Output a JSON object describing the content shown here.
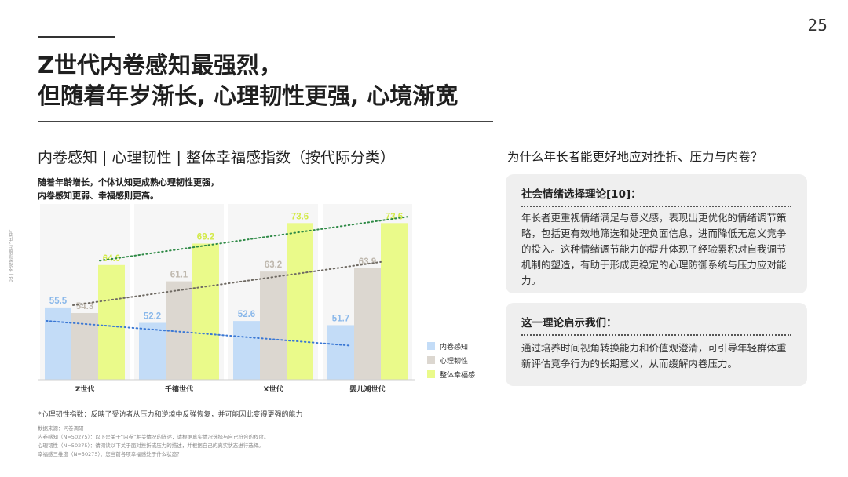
{
  "page_number": "25",
  "title": {
    "line1": "Z世代内卷感知最强烈，",
    "line2": "但随着年岁渐长, 心理韧性更强, 心境渐宽"
  },
  "side_label": "03 | 幸福感浓度与“内卷”",
  "chart_title": "内卷感知 | 心理韧性 | 整体幸福感指数（按代际分类）",
  "chart_subtitle": {
    "line1": "随着年龄增长，个体认知更成熟心理韧性更强，",
    "line2": "内卷感知更弱、幸福感则更高。"
  },
  "chart_data": {
    "type": "bar",
    "categories": [
      "Z世代",
      "千禧世代",
      "X世代",
      "婴儿潮世代"
    ],
    "series": [
      {
        "name": "内卷感知",
        "values": [
          55.5,
          52.2,
          52.6,
          51.7
        ],
        "color": "#c3dcf7",
        "label_color": "#8ab8ea",
        "trend_color": "#3b78d4"
      },
      {
        "name": "心理韧性",
        "values": [
          54.3,
          61.1,
          63.2,
          63.9
        ],
        "color": "#dcd7d0",
        "label_color": "#bfb8ae",
        "trend_color": "#6f6a63"
      },
      {
        "name": "整体幸福感",
        "values": [
          64.6,
          69.2,
          73.6,
          73.6
        ],
        "color": "#eafa8a",
        "label_color": "#d3ea4a",
        "trend_color": "#2f8a47"
      }
    ],
    "ylim": [
      40,
      75
    ],
    "trendlines": true,
    "legend_position": "right"
  },
  "footnote": "*心理韧性指数：反映了受访者从压力和逆境中反弹恢复，并可能因此变得更强的能力",
  "source_lines": [
    "数据来源：问卷调研",
    "内卷感知（N=50275）：以下是关于“内卷”相关情况的陈述，请根据真实情况选择与自己符合的程度。",
    "心理韧性（N=50275）：请阅读以下关于面对挫折或压力的描述，并根据自己的真实状态进行选择。",
    "幸福感三维度（N=50275）：您当前各项幸福感处于什么状态？"
  ],
  "right_panel": {
    "question": "为什么年长者能更好地应对挫折、压力与内卷？",
    "card1_title": "社会情绪选择理论[10]：",
    "card1_body": "年长者更重视情绪满足与意义感，表现出更优化的情绪调节策略，包括更有效地筛选和处理负面信息，进而降低无意义竞争的投入。这种情绪调节能力的提升体现了经验累积对自我调节机制的塑造，有助于形成更稳定的心理防御系统与压力应对能力。",
    "card2_title": "这一理论启示我们：",
    "card2_body": "通过培养时间视角转换能力和价值观澄清，可引导年轻群体重新评估竞争行为的长期意义，从而缓解内卷压力。"
  }
}
